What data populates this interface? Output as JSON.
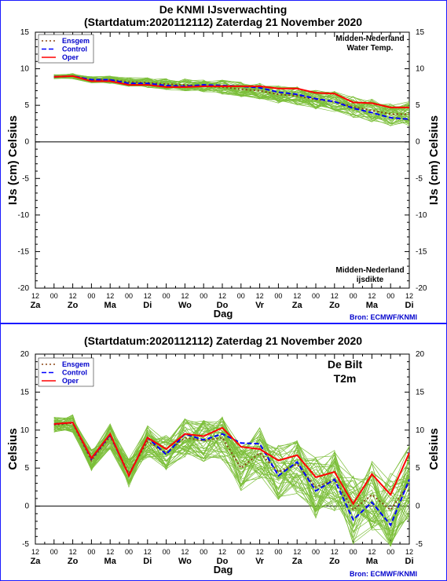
{
  "chart_data": [
    {
      "type": "line",
      "title": "De KNMI IJsverwachting",
      "subtitle": "(Startdatum:2020112112)  Zaterdag 21 November 2020",
      "ylabel_left": "IJs (cm)  Celsius",
      "ylabel_right": "IJs (cm)  Celsius",
      "xlabel": "Dag",
      "ylim": [
        -20,
        15
      ],
      "yticks": [
        15,
        10,
        5,
        0,
        -5,
        -10,
        -15,
        -20
      ],
      "hours_row": [
        "12",
        "00",
        "12",
        "00",
        "12",
        "00",
        "12",
        "00",
        "12",
        "00",
        "12",
        "00",
        "12",
        "00",
        "12",
        "00",
        "12",
        "00",
        "12",
        "00",
        "12"
      ],
      "days_row": [
        "Za",
        "Zo",
        "Ma",
        "Di",
        "Wo",
        "Do",
        "Vr",
        "Za",
        "Zo",
        "Ma",
        "Di"
      ],
      "annotations": {
        "top_right": [
          "Midden-Nederland",
          "Water Temp."
        ],
        "bottom_right": [
          "Midden-Nederland",
          "ijsdikte"
        ],
        "source": "Bron: ECMWF/KNMI"
      },
      "legend_position": "top-left",
      "legend": [
        "Ensgem",
        "Control",
        "Oper"
      ],
      "x": [
        12,
        24,
        36,
        48,
        60,
        72,
        84,
        96,
        108,
        120,
        132,
        144,
        156,
        168,
        180,
        192,
        204,
        216,
        228,
        240
      ],
      "series": [
        {
          "name": "Ensgem",
          "color": "#8b4513",
          "style": "dotted",
          "values": [
            8.9,
            9.0,
            8.5,
            8.5,
            8.2,
            8.1,
            7.9,
            7.8,
            7.6,
            7.5,
            7.2,
            7.0,
            6.5,
            6.3,
            5.8,
            5.5,
            4.8,
            4.3,
            3.8,
            3.8
          ]
        },
        {
          "name": "Control",
          "color": "#0000ff",
          "style": "dashed",
          "values": [
            8.9,
            9.0,
            8.5,
            8.5,
            8.0,
            8.0,
            7.7,
            7.6,
            7.8,
            7.7,
            7.6,
            7.4,
            6.8,
            6.5,
            5.9,
            5.5,
            4.6,
            4.0,
            3.3,
            3.1
          ]
        },
        {
          "name": "Oper",
          "color": "#ff0000",
          "style": "solid",
          "values": [
            8.9,
            9.0,
            8.3,
            8.3,
            7.8,
            7.8,
            7.5,
            7.5,
            7.6,
            7.6,
            7.6,
            7.6,
            7.3,
            7.3,
            6.7,
            6.6,
            5.4,
            5.3,
            4.7,
            4.7
          ]
        }
      ]
    },
    {
      "type": "line",
      "title": "",
      "subtitle": "(Startdatum:2020112112)  Zaterdag 21 November 2020",
      "ylabel_left": "Celsius",
      "ylabel_right": "Celsius",
      "xlabel": "Dag",
      "ylim": [
        -5,
        20
      ],
      "yticks": [
        20,
        15,
        10,
        5,
        0,
        -5
      ],
      "hours_row": [
        "12",
        "00",
        "12",
        "00",
        "12",
        "00",
        "12",
        "00",
        "12",
        "00",
        "12",
        "00",
        "12",
        "00",
        "12",
        "00",
        "12",
        "00",
        "12",
        "00",
        "12"
      ],
      "days_row": [
        "Za",
        "Zo",
        "Ma",
        "Di",
        "Wo",
        "Do",
        "Vr",
        "Za",
        "Zo",
        "Ma",
        "Di"
      ],
      "annotations": {
        "top_right": [
          "De Bilt",
          "T2m"
        ],
        "source": "Bron: ECMWF/KNMI"
      },
      "legend_position": "top-left",
      "legend": [
        "Ensgem",
        "Control",
        "Oper"
      ],
      "x": [
        12,
        24,
        36,
        48,
        60,
        72,
        84,
        96,
        108,
        120,
        132,
        144,
        156,
        168,
        180,
        192,
        204,
        216,
        228,
        240
      ],
      "series": [
        {
          "name": "Ensgem",
          "color": "#8b4513",
          "style": "dotted",
          "values": [
            10.7,
            10.9,
            6.0,
            9.2,
            4.3,
            8.5,
            7.0,
            9.0,
            8.6,
            9.0,
            5.0,
            7.0,
            4.5,
            5.5,
            2.5,
            3.5,
            -0.5,
            1.5,
            -0.5,
            3.0
          ]
        },
        {
          "name": "Control",
          "color": "#0000ff",
          "style": "dashed",
          "values": [
            10.8,
            11.0,
            6.2,
            9.4,
            4.0,
            9.0,
            6.8,
            9.5,
            8.7,
            9.5,
            8.3,
            8.2,
            4.0,
            5.8,
            2.0,
            3.5,
            -1.8,
            0.5,
            -2.5,
            3.5
          ]
        },
        {
          "name": "Oper",
          "color": "#ff0000",
          "style": "solid",
          "values": [
            10.8,
            11.0,
            6.3,
            9.5,
            4.0,
            9.0,
            7.5,
            9.5,
            9.2,
            10.3,
            7.8,
            7.5,
            6.0,
            6.7,
            3.8,
            4.5,
            0.3,
            4.2,
            1.5,
            7.0
          ]
        }
      ]
    }
  ]
}
